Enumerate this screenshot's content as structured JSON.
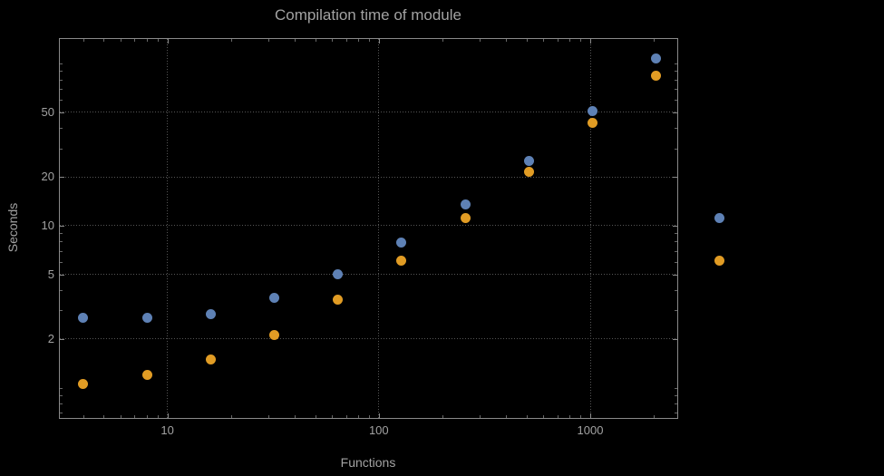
{
  "colors": {
    "background": "#000000",
    "text": "#a2a2a2",
    "grid": "#565656",
    "frame": "#8a8a8a",
    "series_blue": "#5E81B5",
    "series_orange": "#E19C24"
  },
  "chart_data": {
    "type": "scatter",
    "scale": "log-log",
    "title": "Compilation time of module",
    "xlabel": "Functions",
    "ylabel": "Seconds",
    "grid": true,
    "xlim": [
      3.1,
      2580
    ],
    "ylim": [
      0.65,
      142
    ],
    "x": [
      4,
      8,
      16,
      32,
      64,
      128,
      256,
      512,
      1024,
      2048
    ],
    "series": [
      {
        "name": "blue",
        "color": "#5E81B5",
        "values": [
          2.7,
          2.7,
          2.85,
          3.6,
          5.0,
          7.9,
          13.5,
          25,
          51,
          108
        ]
      },
      {
        "name": "orange",
        "color": "#E19C24",
        "values": [
          1.05,
          1.2,
          1.5,
          2.1,
          3.5,
          6.1,
          11.2,
          21.5,
          43,
          84
        ]
      }
    ],
    "right_markers": [
      {
        "color": "#5E81B5",
        "x": 4096,
        "y": 11.2
      },
      {
        "color": "#E19C24",
        "x": 4096,
        "y": 6.1
      }
    ],
    "x_ticks": [
      {
        "value": 10,
        "label": "10"
      },
      {
        "value": 100,
        "label": "100"
      },
      {
        "value": 1000,
        "label": "1000"
      }
    ],
    "y_ticks": [
      {
        "value": 2,
        "label": "2"
      },
      {
        "value": 5,
        "label": "5"
      },
      {
        "value": 10,
        "label": "10"
      },
      {
        "value": 20,
        "label": "20"
      },
      {
        "value": 50,
        "label": "50"
      }
    ]
  }
}
